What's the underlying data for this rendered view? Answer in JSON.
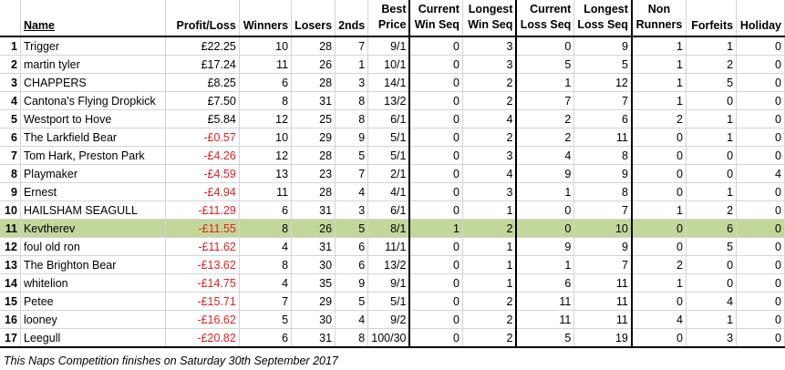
{
  "headers": {
    "rank": "",
    "name": "Name",
    "profit": "Profit/Loss",
    "winners": "Winners",
    "losers": "Losers",
    "seconds": "2nds",
    "best_price": [
      "Best",
      "Price"
    ],
    "current_win": [
      "Current",
      "Win Seq"
    ],
    "longest_win": [
      "Longest",
      "Win Seq"
    ],
    "current_loss": [
      "Current",
      "Loss Seq"
    ],
    "longest_loss": [
      "Longest",
      "Loss Seq"
    ],
    "non_runners": [
      "Non",
      "Runners"
    ],
    "forfeits": "Forfeits",
    "holiday": "Holiday"
  },
  "rows": [
    {
      "rank": "1",
      "name": "Trigger",
      "profit": "£22.25",
      "winners": "10",
      "losers": "28",
      "seconds": "7",
      "best": "9/1",
      "cws": "0",
      "lws": "3",
      "cls": "0",
      "lls": "9",
      "nr": "1",
      "forfeits": "1",
      "holiday": "0"
    },
    {
      "rank": "2",
      "name": "martin tyler",
      "profit": "£17.24",
      "winners": "11",
      "losers": "26",
      "seconds": "1",
      "best": "10/1",
      "cws": "0",
      "lws": "3",
      "cls": "5",
      "lls": "5",
      "nr": "1",
      "forfeits": "2",
      "holiday": "0"
    },
    {
      "rank": "3",
      "name": "CHAPPERS",
      "profit": "£8.25",
      "winners": "6",
      "losers": "28",
      "seconds": "3",
      "best": "14/1",
      "cws": "0",
      "lws": "2",
      "cls": "1",
      "lls": "12",
      "nr": "1",
      "forfeits": "5",
      "holiday": "0"
    },
    {
      "rank": "4",
      "name": "Cantona's Flying Dropkick",
      "profit": "£7.50",
      "winners": "8",
      "losers": "31",
      "seconds": "8",
      "best": "13/2",
      "cws": "0",
      "lws": "2",
      "cls": "7",
      "lls": "7",
      "nr": "1",
      "forfeits": "0",
      "holiday": "0"
    },
    {
      "rank": "5",
      "name": "Westport to Hove",
      "profit": "£5.84",
      "winners": "12",
      "losers": "25",
      "seconds": "8",
      "best": "6/1",
      "cws": "0",
      "lws": "4",
      "cls": "2",
      "lls": "6",
      "nr": "2",
      "forfeits": "1",
      "holiday": "0"
    },
    {
      "rank": "6",
      "name": "The Larkfield Bear",
      "profit": "-£0.57",
      "winners": "10",
      "losers": "29",
      "seconds": "9",
      "best": "5/1",
      "cws": "0",
      "lws": "2",
      "cls": "2",
      "lls": "11",
      "nr": "0",
      "forfeits": "1",
      "holiday": "0"
    },
    {
      "rank": "7",
      "name": "Tom Hark, Preston Park",
      "profit": "-£4.26",
      "winners": "12",
      "losers": "28",
      "seconds": "5",
      "best": "5/1",
      "cws": "0",
      "lws": "3",
      "cls": "4",
      "lls": "8",
      "nr": "0",
      "forfeits": "0",
      "holiday": "0"
    },
    {
      "rank": "8",
      "name": "Playmaker",
      "profit": "-£4.59",
      "winners": "13",
      "losers": "23",
      "seconds": "7",
      "best": "2/1",
      "cws": "0",
      "lws": "4",
      "cls": "9",
      "lls": "9",
      "nr": "0",
      "forfeits": "0",
      "holiday": "4"
    },
    {
      "rank": "9",
      "name": "Ernest",
      "profit": "-£4.94",
      "winners": "11",
      "losers": "28",
      "seconds": "4",
      "best": "4/1",
      "cws": "0",
      "lws": "3",
      "cls": "1",
      "lls": "8",
      "nr": "0",
      "forfeits": "1",
      "holiday": "0"
    },
    {
      "rank": "10",
      "name": "HAILSHAM SEAGULL",
      "profit": "-£11.29",
      "winners": "6",
      "losers": "31",
      "seconds": "3",
      "best": "6/1",
      "cws": "0",
      "lws": "1",
      "cls": "0",
      "lls": "7",
      "nr": "1",
      "forfeits": "2",
      "holiday": "0"
    },
    {
      "rank": "11",
      "name": "Kevtherev",
      "profit": "-£11.55",
      "winners": "8",
      "losers": "26",
      "seconds": "5",
      "best": "8/1",
      "cws": "1",
      "lws": "2",
      "cls": "0",
      "lls": "10",
      "nr": "0",
      "forfeits": "6",
      "holiday": "0",
      "highlight": true
    },
    {
      "rank": "12",
      "name": "foul old ron",
      "profit": "-£11.62",
      "winners": "4",
      "losers": "31",
      "seconds": "6",
      "best": "11/1",
      "cws": "0",
      "lws": "1",
      "cls": "9",
      "lls": "9",
      "nr": "0",
      "forfeits": "5",
      "holiday": "0"
    },
    {
      "rank": "13",
      "name": "The Brighton Bear",
      "profit": "-£13.62",
      "winners": "8",
      "losers": "30",
      "seconds": "6",
      "best": "13/2",
      "cws": "0",
      "lws": "1",
      "cls": "1",
      "lls": "7",
      "nr": "2",
      "forfeits": "0",
      "holiday": "0"
    },
    {
      "rank": "14",
      "name": "whitelion",
      "profit": "-£14.75",
      "winners": "4",
      "losers": "35",
      "seconds": "9",
      "best": "9/1",
      "cws": "0",
      "lws": "1",
      "cls": "6",
      "lls": "11",
      "nr": "1",
      "forfeits": "0",
      "holiday": "0"
    },
    {
      "rank": "15",
      "name": "Petee",
      "profit": "-£15.71",
      "winners": "7",
      "losers": "29",
      "seconds": "5",
      "best": "5/1",
      "cws": "0",
      "lws": "2",
      "cls": "11",
      "lls": "11",
      "nr": "0",
      "forfeits": "4",
      "holiday": "0"
    },
    {
      "rank": "16",
      "name": "looney",
      "profit": "-£16.62",
      "winners": "5",
      "losers": "30",
      "seconds": "4",
      "best": "9/2",
      "cws": "0",
      "lws": "2",
      "cls": "11",
      "lls": "11",
      "nr": "4",
      "forfeits": "1",
      "holiday": "0"
    },
    {
      "rank": "17",
      "name": "Leegull",
      "profit": "-£20.82",
      "winners": "6",
      "losers": "31",
      "seconds": "8",
      "best": "100/30",
      "cws": "0",
      "lws": "2",
      "cls": "5",
      "lls": "19",
      "nr": "0",
      "forfeits": "3",
      "holiday": "0"
    }
  ],
  "footer": "This Naps Competition finishes on Saturday 30th September 2017",
  "colors": {
    "highlight_row": "#c4d79b",
    "negative": "#e02020"
  }
}
